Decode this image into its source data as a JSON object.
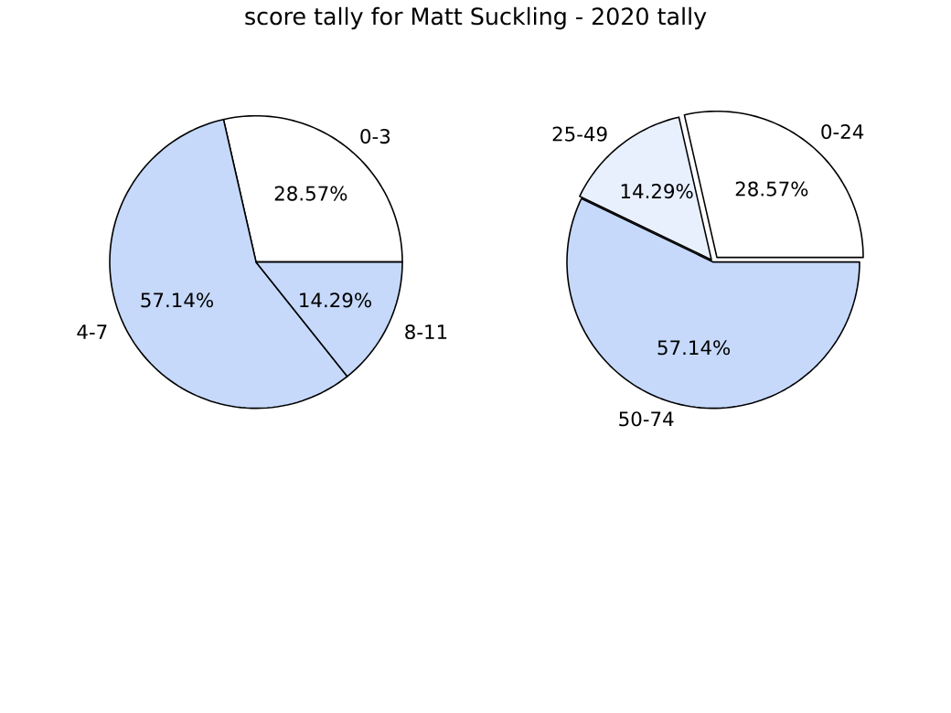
{
  "chart_data": [
    {
      "type": "pie",
      "title": "score tally for Matt Suckling - 2020 tally",
      "categories": [
        "0-3",
        "4-7",
        "8-11"
      ],
      "values": [
        28.57,
        57.14,
        14.29
      ],
      "value_labels": [
        "28.57%",
        "57.14%",
        "14.29%"
      ],
      "colors": [
        "#ffffff",
        "#c6d9fb",
        "#c6d9fb"
      ]
    },
    {
      "type": "pie",
      "categories": [
        "0-24",
        "25-49",
        "50-74"
      ],
      "values": [
        28.57,
        14.29,
        57.14
      ],
      "value_labels": [
        "28.57%",
        "14.29%",
        "57.14%"
      ],
      "colors": [
        "#ffffff",
        "#e8f0fe",
        "#c6d9fb"
      ]
    }
  ]
}
